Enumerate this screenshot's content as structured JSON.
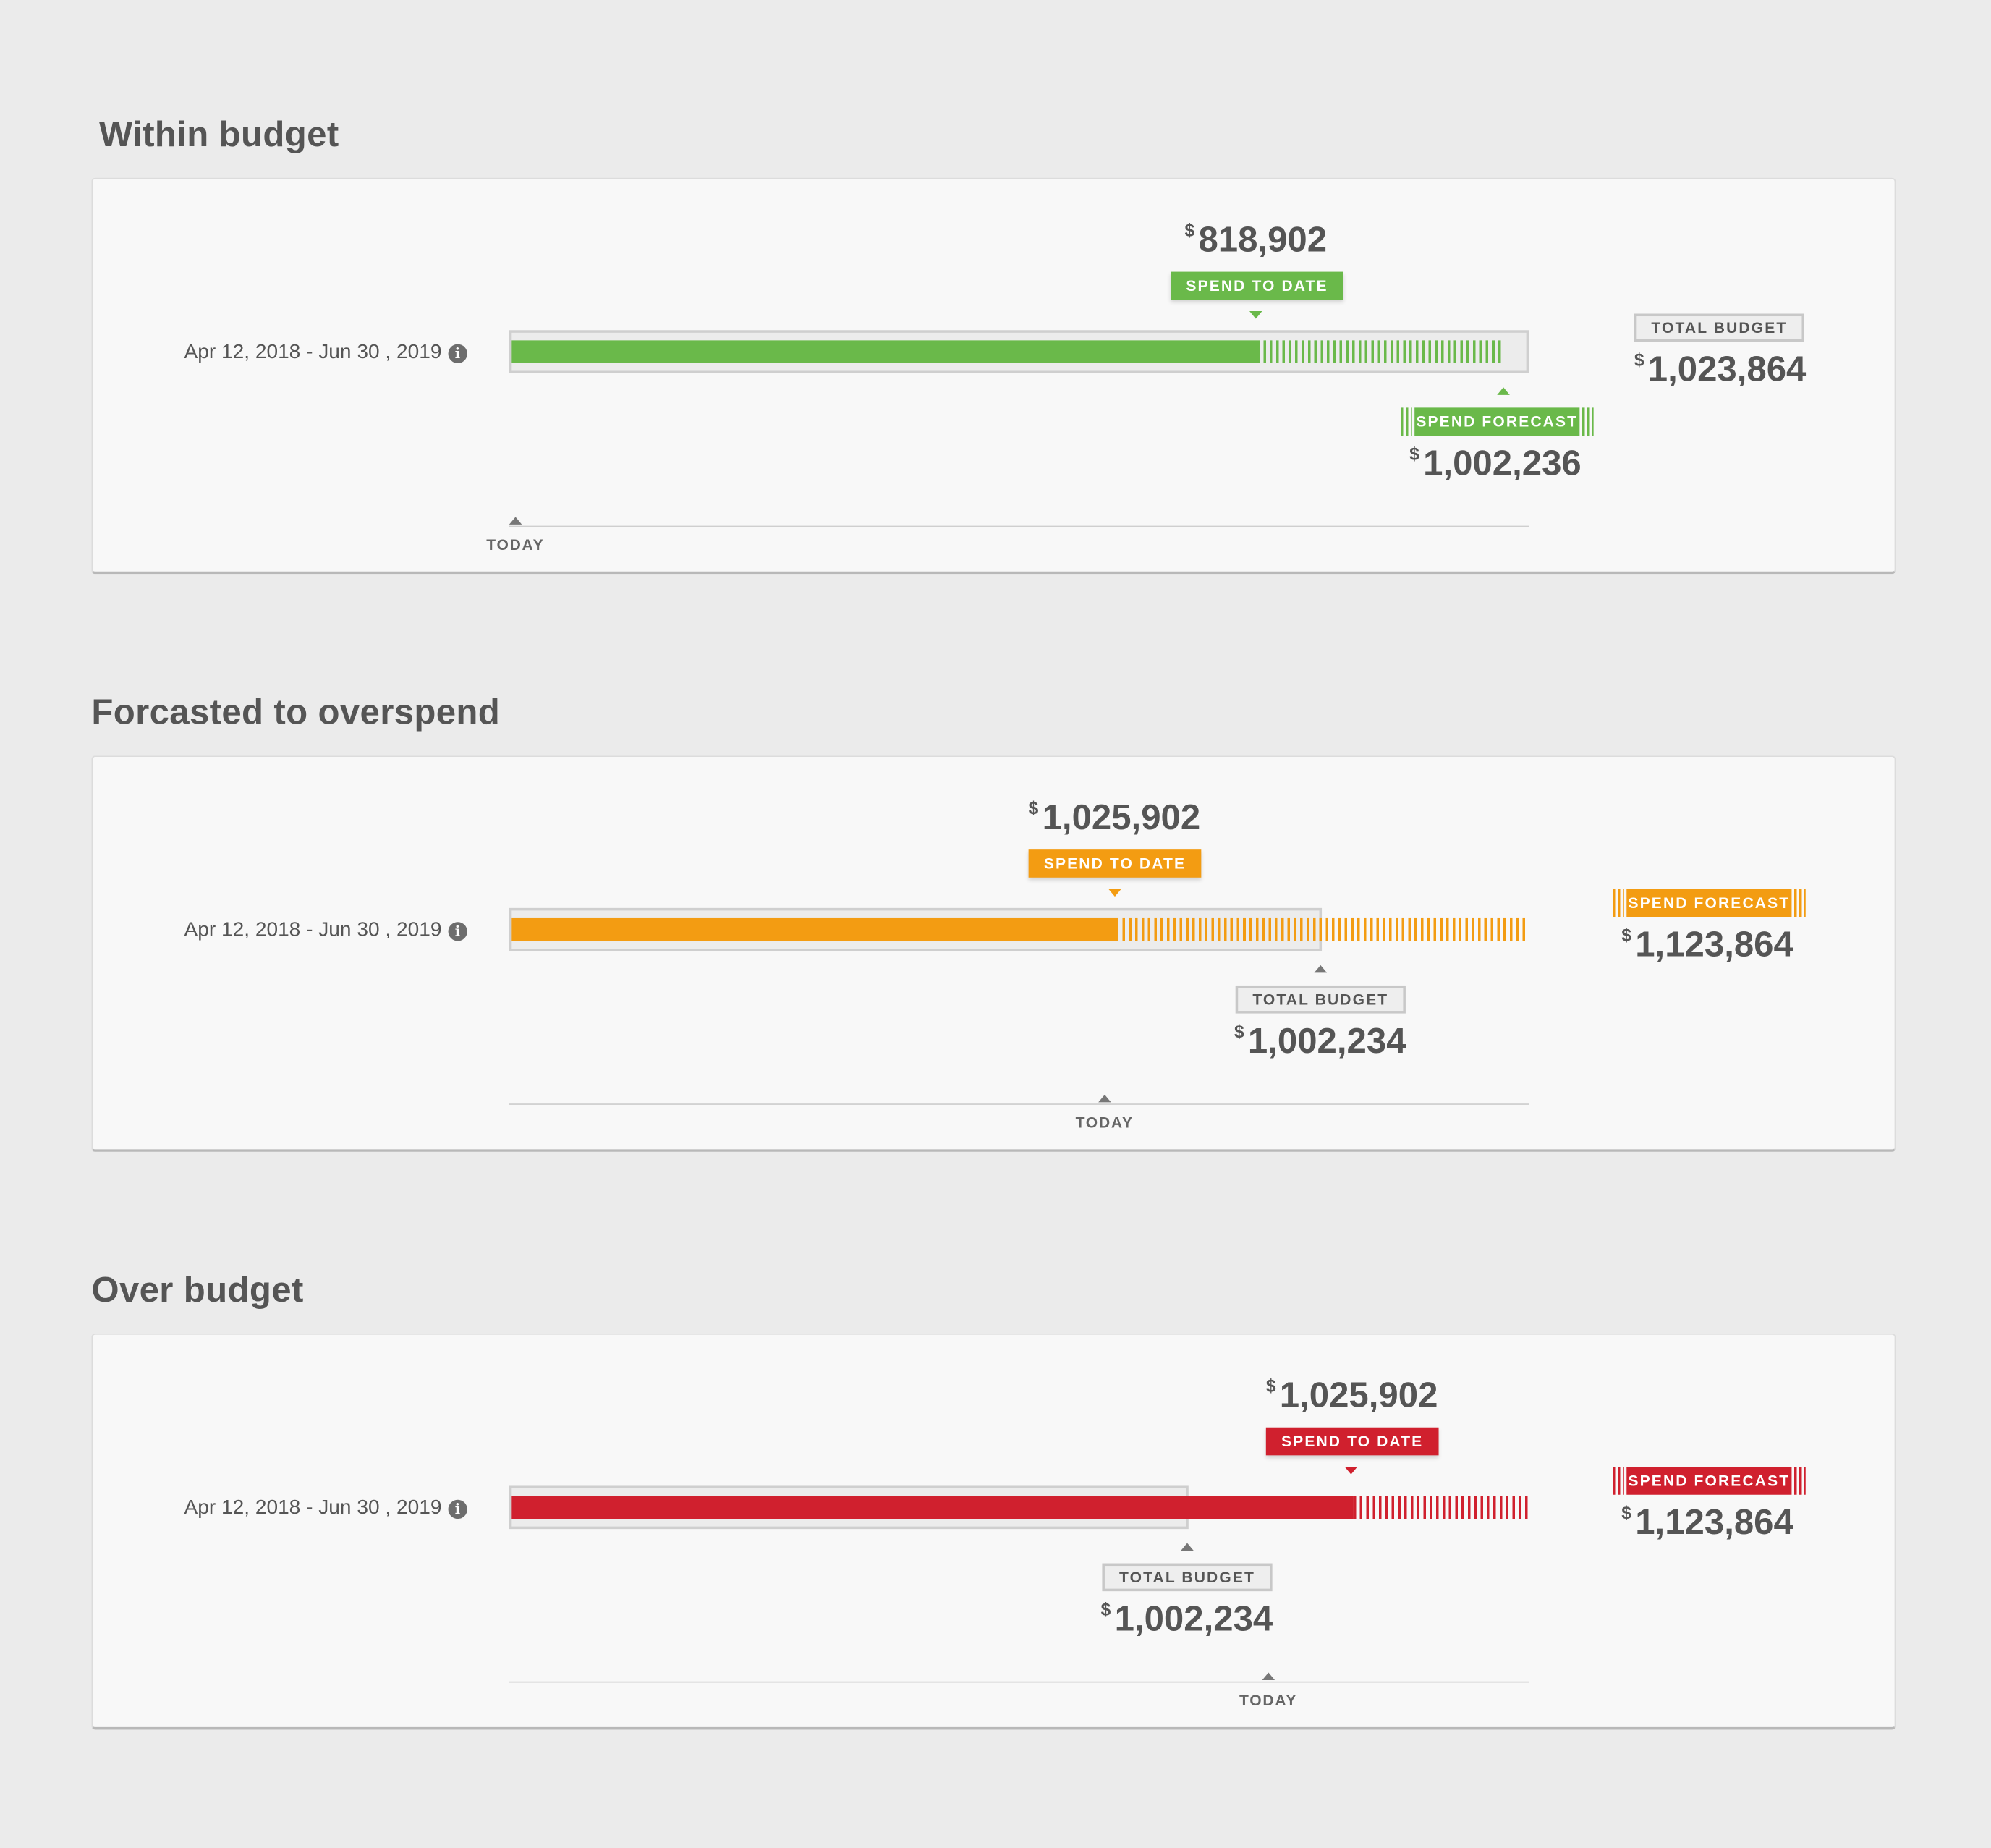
{
  "colors": {
    "green": "#6ab94a",
    "orange": "#f39c12",
    "red": "#d0202e",
    "neutral": "#cfcfcf"
  },
  "cards": [
    {
      "heading": "Within budget",
      "period": "Apr 12, 2018 - Jun 30 , 2019",
      "info_icon": "info-icon",
      "spend_to_date": {
        "label": "SPEND TO DATE",
        "currency": "$",
        "amount": "818,902",
        "fraction": 0.731
      },
      "spend_forecast": {
        "label": "SPEND FORECAST",
        "currency": "$",
        "amount": "1,002,236",
        "fraction": 0.974
      },
      "total_budget": {
        "label": "TOTAL BUDGET",
        "currency": "$",
        "amount": "1,023,864",
        "fraction": 1.0
      },
      "today": {
        "label": "TODAY",
        "fraction": 0.0
      }
    },
    {
      "heading": "Forcasted to overspend",
      "period": "Apr 12, 2018 - Jun 30 , 2019",
      "info_icon": "info-icon",
      "spend_to_date": {
        "label": "SPEND TO DATE",
        "currency": "$",
        "amount": "1,025,902",
        "fraction": 0.595
      },
      "spend_forecast": {
        "label": "SPEND FORECAST",
        "currency": "$",
        "amount": "1,123,864",
        "fraction": 1.0
      },
      "total_budget": {
        "label": "TOTAL BUDGET",
        "currency": "$",
        "amount": "1,002,234",
        "fraction": 0.795
      },
      "today": {
        "label": "TODAY",
        "fraction": 0.585
      }
    },
    {
      "heading": "Over budget",
      "period": "Apr 12, 2018 - Jun 30 , 2019",
      "info_icon": "info-icon",
      "spend_to_date": {
        "label": "SPEND TO DATE",
        "currency": "$",
        "amount": "1,025,902",
        "fraction": 0.828
      },
      "spend_forecast": {
        "label": "SPEND FORECAST",
        "currency": "$",
        "amount": "1,123,864",
        "fraction": 1.0
      },
      "total_budget": {
        "label": "TOTAL BUDGET",
        "currency": "$",
        "amount": "1,002,234",
        "fraction": 0.666
      },
      "today": {
        "label": "TODAY",
        "fraction": 0.745
      }
    }
  ]
}
